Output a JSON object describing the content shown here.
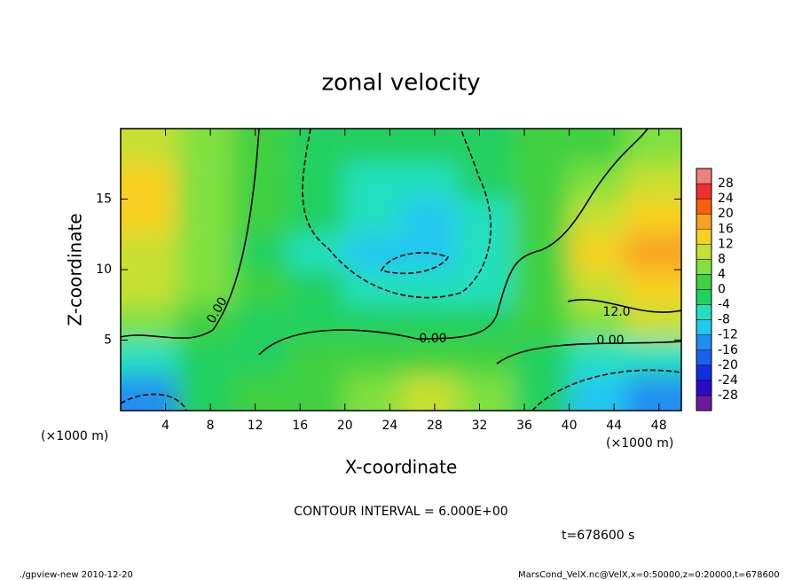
{
  "chart_data": {
    "type": "contour",
    "title": "zonal velocity",
    "xlabel": "X-coordinate",
    "ylabel": "Z-coordinate",
    "x_unit": "(×1000 m)",
    "y_unit": "(×1000 m)",
    "contour_interval": "CONTOUR INTERVAL = 6.000E+00",
    "time_label": "t=678600 s",
    "footer_left": "./gpview-new  2010-12-20",
    "footer_right": "MarsCond_VelX.nc@VelX,x=0:50000,z=0:20000,t=678600",
    "contour_labels": [
      "0.00",
      "0.00",
      "0.00",
      "12.0"
    ],
    "xlim": [
      0,
      50
    ],
    "ylim": [
      0,
      20
    ],
    "xticks": [
      4,
      8,
      12,
      16,
      20,
      24,
      28,
      32,
      36,
      40,
      44,
      48
    ],
    "yticks": [
      5,
      10,
      15
    ],
    "x": [
      2.5,
      7.5,
      12.5,
      17.5,
      22.5,
      27.5,
      32.5,
      37.5,
      42.5,
      47.5
    ],
    "y": [
      1.25,
      3.75,
      6.25,
      8.75,
      11.25,
      13.75,
      16.25,
      18.75
    ],
    "values": [
      [
        -14,
        -2,
        0,
        2,
        6,
        10,
        4,
        -2,
        -10,
        -14
      ],
      [
        -6,
        -3,
        -2,
        0,
        2,
        3,
        2,
        -2,
        -6,
        -8
      ],
      [
        4,
        0,
        -2,
        -3,
        -4,
        -4,
        -3,
        2,
        6,
        8
      ],
      [
        8,
        4,
        0,
        -4,
        -7,
        -8,
        -5,
        0,
        10,
        14
      ],
      [
        10,
        4,
        -1,
        -5,
        -10,
        -12,
        -6,
        0,
        12,
        16
      ],
      [
        12,
        5,
        0,
        -4,
        -8,
        -9,
        -5,
        0,
        8,
        14
      ],
      [
        12,
        4,
        0,
        -3,
        -6,
        -6,
        -3,
        0,
        4,
        8
      ],
      [
        10,
        4,
        0,
        -2,
        -4,
        -4,
        -2,
        0,
        2,
        4
      ]
    ],
    "levels": [
      -32,
      -28,
      -24,
      -20,
      -16,
      -12,
      -8,
      -4,
      0,
      4,
      8,
      12,
      16,
      20,
      24,
      28,
      32
    ],
    "colorbar_ticks": [
      -28,
      -24,
      -20,
      -16,
      -12,
      -8,
      -4,
      0,
      4,
      8,
      12,
      16,
      20,
      24,
      28
    ],
    "colors": [
      "#6a1a9a",
      "#2a0cc8",
      "#1030e0",
      "#1a60f0",
      "#2090f0",
      "#20c8f0",
      "#20e0c0",
      "#20d060",
      "#40d040",
      "#80e040",
      "#c8e030",
      "#f8d020",
      "#f8a020",
      "#f86010",
      "#f03030",
      "#f08080"
    ]
  }
}
